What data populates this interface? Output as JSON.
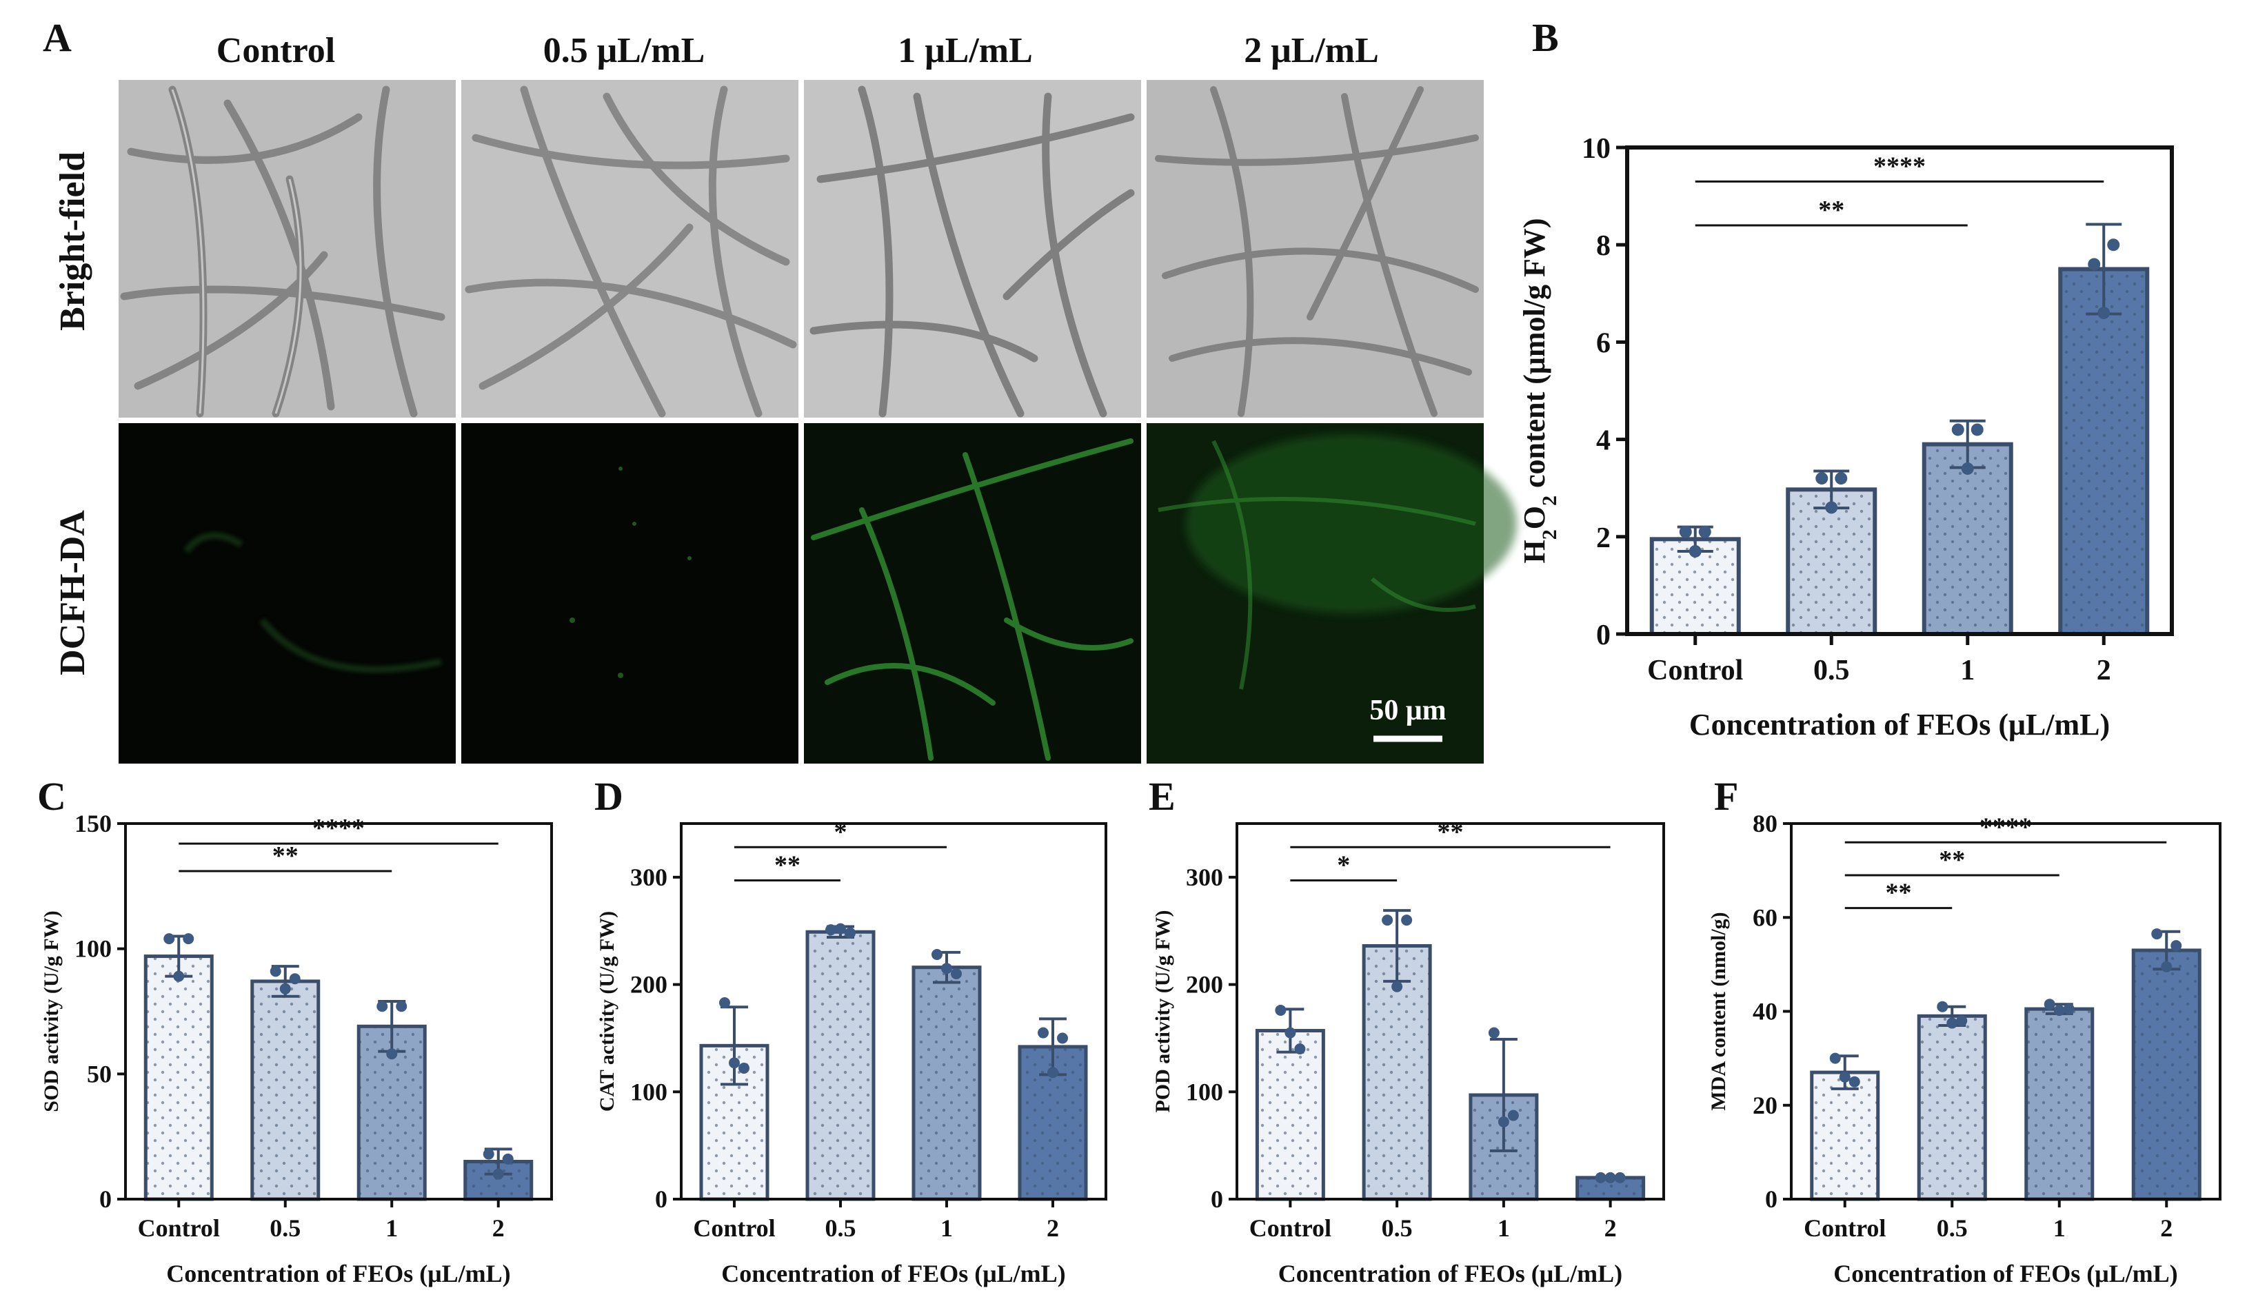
{
  "panel_a": {
    "letter": "A",
    "column_headers": [
      "Control",
      "0.5 μL/mL",
      "1 μL/mL",
      "2 μL/mL"
    ],
    "row_labels": [
      "Bright-field",
      "DCFH-DA"
    ],
    "scale_bar": "50 μm",
    "fluorescence_color": "#2f8a2f"
  },
  "colors": {
    "edge": "#3a4e6b",
    "fills": [
      "#f0f3f8",
      "#c8d3e3",
      "#8fa5c6",
      "#5677a8"
    ],
    "dot": "#3d5a82"
  },
  "chart_data": [
    {
      "id": "B",
      "letter": "B",
      "type": "bar",
      "categories": [
        "Control",
        "0.5",
        "1",
        "2"
      ],
      "values": [
        1.95,
        2.97,
        3.9,
        7.5
      ],
      "errors": [
        0.25,
        0.38,
        0.48,
        0.92
      ],
      "points": [
        [
          2.1,
          2.1,
          1.7
        ],
        [
          3.2,
          3.2,
          2.6
        ],
        [
          4.2,
          4.2,
          3.4
        ],
        [
          7.6,
          8.0,
          6.6
        ]
      ],
      "ylabel_parts": [
        "H",
        "2",
        "O",
        "2",
        " content (μmol/g FW)"
      ],
      "xlabel": "Concentration of FEOs (μL/mL)",
      "ylim": [
        0,
        10
      ],
      "yticks": [
        "0",
        "2",
        "4",
        "6",
        "8",
        "10"
      ],
      "significance": [
        {
          "from": 0,
          "to": 2,
          "label": "**",
          "y": 8.4
        },
        {
          "from": 0,
          "to": 3,
          "label": "****",
          "y": 9.3
        }
      ]
    },
    {
      "id": "C",
      "letter": "C",
      "type": "bar",
      "categories": [
        "Control",
        "0.5",
        "1",
        "2"
      ],
      "values": [
        97,
        87,
        69,
        15
      ],
      "errors": [
        8,
        6,
        10,
        5
      ],
      "points": [
        [
          104,
          104,
          89
        ],
        [
          91,
          88,
          84
        ],
        [
          77,
          77,
          58
        ],
        [
          18,
          16,
          10
        ]
      ],
      "ylabel": "SOD activity (U/g FW)",
      "xlabel": "Concentration of FEOs (μL/mL)",
      "ylim": [
        0,
        150
      ],
      "yticks": [
        "0",
        "50",
        "100",
        "150"
      ],
      "significance": [
        {
          "from": 0,
          "to": 2,
          "label": "**",
          "y": 131
        },
        {
          "from": 0,
          "to": 3,
          "label": "****",
          "y": 142
        }
      ]
    },
    {
      "id": "D",
      "letter": "D",
      "type": "bar",
      "categories": [
        "Control",
        "0.5",
        "1",
        "2"
      ],
      "values": [
        143,
        249,
        216,
        142
      ],
      "errors": [
        36,
        5,
        14,
        26
      ],
      "points": [
        [
          183,
          122,
          127
        ],
        [
          251,
          248,
          252
        ],
        [
          228,
          210,
          215
        ],
        [
          155,
          150,
          118
        ]
      ],
      "ylabel": "CAT activity (U/g FW)",
      "xlabel": "Concentration of FEOs (μL/mL)",
      "ylim": [
        0,
        350
      ],
      "yticks": [
        "0",
        "100",
        "200",
        "300"
      ],
      "significance": [
        {
          "from": 0,
          "to": 1,
          "label": "**",
          "y": 297
        },
        {
          "from": 0,
          "to": 2,
          "label": "*",
          "y": 328
        }
      ]
    },
    {
      "id": "E",
      "letter": "E",
      "type": "bar",
      "categories": [
        "Control",
        "0.5",
        "1",
        "2"
      ],
      "values": [
        157,
        236,
        97,
        20
      ],
      "errors": [
        20,
        33,
        52,
        1
      ],
      "points": [
        [
          176,
          140,
          155
        ],
        [
          260,
          260,
          198
        ],
        [
          155,
          78,
          72
        ],
        [
          20,
          20,
          20
        ]
      ],
      "ylabel": "POD activity (U/g FW)",
      "xlabel": "Concentration of FEOs (μL/mL)",
      "ylim": [
        0,
        350
      ],
      "yticks": [
        "0",
        "100",
        "200",
        "300"
      ],
      "significance": [
        {
          "from": 0,
          "to": 1,
          "label": "*",
          "y": 297
        },
        {
          "from": 0,
          "to": 3,
          "label": "**",
          "y": 328
        }
      ]
    },
    {
      "id": "F",
      "letter": "F",
      "type": "bar",
      "categories": [
        "Control",
        "0.5",
        "1",
        "2"
      ],
      "values": [
        27,
        39,
        40.5,
        53
      ],
      "errors": [
        3.5,
        2,
        1,
        4
      ],
      "points": [
        [
          30,
          25,
          26
        ],
        [
          41,
          38,
          37.5
        ],
        [
          41.5,
          40.5,
          40.2
        ],
        [
          56.5,
          54,
          49.5
        ]
      ],
      "ylabel": "MDA content (nmol/g)",
      "xlabel": "Concentration of FEOs (μL/mL)",
      "ylim": [
        0,
        80
      ],
      "yticks": [
        "0",
        "20",
        "40",
        "60",
        "80"
      ],
      "significance": [
        {
          "from": 0,
          "to": 1,
          "label": "**",
          "y": 62
        },
        {
          "from": 0,
          "to": 2,
          "label": "**",
          "y": 69
        },
        {
          "from": 0,
          "to": 3,
          "label": "****",
          "y": 76
        }
      ]
    }
  ]
}
